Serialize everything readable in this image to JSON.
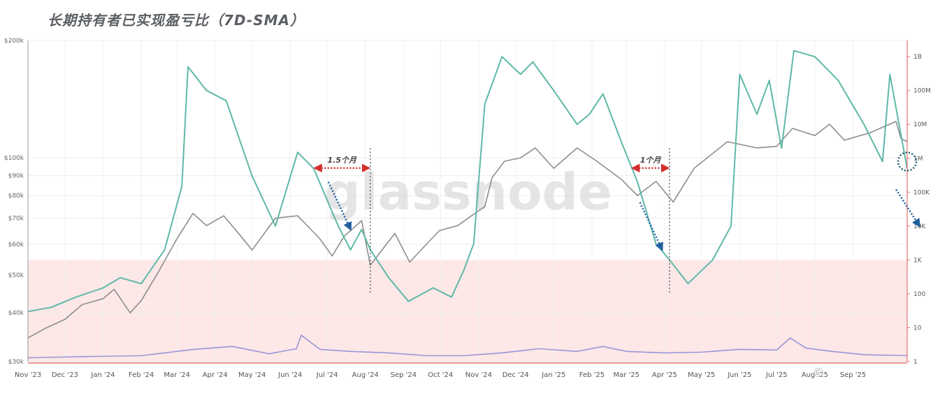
{
  "title": "长期持有者已实现盈亏比（7D-SMA）",
  "watermark": "glassnode",
  "chart_data": {
    "type": "line",
    "x_axis": {
      "type": "date",
      "range": [
        "2023-11-01",
        "2025-10-15"
      ],
      "tick_labels": [
        "Nov '23",
        "Dec '23",
        "Jan '24",
        "Feb '24",
        "Mar '24",
        "Apr '24",
        "May '24",
        "Jun '24",
        "Jul '24",
        "Aug '24",
        "Sep '24",
        "Oct '24",
        "Nov '24",
        "Dec '24",
        "Jan '25",
        "Feb '25",
        "Mar '25",
        "Apr '25",
        "May '25",
        "Jun '25",
        "Jul '25",
        "Aug '25",
        "Sep '25"
      ],
      "tick_dates": [
        "2023-11-01",
        "2023-12-01",
        "2024-01-01",
        "2024-02-01",
        "2024-03-01",
        "2024-04-01",
        "2024-05-01",
        "2024-06-01",
        "2024-07-01",
        "2024-08-01",
        "2024-09-01",
        "2024-10-01",
        "2024-11-01",
        "2024-12-01",
        "2025-01-01",
        "2025-02-01",
        "2025-03-01",
        "2025-04-01",
        "2025-05-01",
        "2025-06-01",
        "2025-07-01",
        "2025-08-01",
        "2025-09-01"
      ]
    },
    "y_left": {
      "scale": "log",
      "range": [
        30000,
        200000
      ],
      "tick_labels": [
        "$200k",
        "$100k",
        "$90k",
        "$80k",
        "$70k",
        "$60k",
        "$50k",
        "$40k",
        "$30k"
      ],
      "tick_values": [
        200000,
        100000,
        90000,
        80000,
        70000,
        60000,
        50000,
        40000,
        30000
      ],
      "color": "#7a7a7a"
    },
    "y_right": {
      "scale": "log",
      "range": [
        1,
        3000000000
      ],
      "tick_labels": [
        "1B",
        "100M",
        "10M",
        "1M",
        "100K",
        "10K",
        "1K",
        "100",
        "10",
        "1"
      ],
      "tick_values": [
        1000000000,
        100000000,
        10000000,
        1000000,
        100000,
        10000,
        1000,
        100,
        10,
        1
      ],
      "color": "#e57373"
    },
    "grid": true,
    "series": [
      {
        "axis": "left",
        "color": "#8e8e8e",
        "points": [
          [
            "2023-11-01",
            34500
          ],
          [
            "2023-11-15",
            36500
          ],
          [
            "2023-12-01",
            38500
          ],
          [
            "2023-12-15",
            42000
          ],
          [
            "2024-01-01",
            43500
          ],
          [
            "2024-01-10",
            46000
          ],
          [
            "2024-01-23",
            40000
          ],
          [
            "2024-02-01",
            43000
          ],
          [
            "2024-02-15",
            51000
          ],
          [
            "2024-03-01",
            62000
          ],
          [
            "2024-03-14",
            72000
          ],
          [
            "2024-03-25",
            67000
          ],
          [
            "2024-04-08",
            71000
          ],
          [
            "2024-04-20",
            64000
          ],
          [
            "2024-05-01",
            58000
          ],
          [
            "2024-05-20",
            70000
          ],
          [
            "2024-06-07",
            71000
          ],
          [
            "2024-06-25",
            62000
          ],
          [
            "2024-07-05",
            56000
          ],
          [
            "2024-07-15",
            63000
          ],
          [
            "2024-07-29",
            69000
          ],
          [
            "2024-08-05",
            53000
          ],
          [
            "2024-08-25",
            64000
          ],
          [
            "2024-09-06",
            54000
          ],
          [
            "2024-09-30",
            65000
          ],
          [
            "2024-10-15",
            67000
          ],
          [
            "2024-10-29",
            72000
          ],
          [
            "2024-11-06",
            75000
          ],
          [
            "2024-11-12",
            89000
          ],
          [
            "2024-11-22",
            98000
          ],
          [
            "2024-12-05",
            100000
          ],
          [
            "2024-12-17",
            106000
          ],
          [
            "2025-01-01",
            94000
          ],
          [
            "2025-01-20",
            106000
          ],
          [
            "2025-02-05",
            98000
          ],
          [
            "2025-02-25",
            88000
          ],
          [
            "2025-03-10",
            80000
          ],
          [
            "2025-03-25",
            87000
          ],
          [
            "2025-04-08",
            77000
          ],
          [
            "2025-04-25",
            94000
          ],
          [
            "2025-05-22",
            110000
          ],
          [
            "2025-06-15",
            106000
          ],
          [
            "2025-07-01",
            107000
          ],
          [
            "2025-07-14",
            119000
          ],
          [
            "2025-08-01",
            114000
          ],
          [
            "2025-08-13",
            122000
          ],
          [
            "2025-08-25",
            111000
          ],
          [
            "2025-09-15",
            116000
          ],
          [
            "2025-10-06",
            124000
          ],
          [
            "2025-10-10",
            112000
          ],
          [
            "2025-10-15",
            110000
          ]
        ]
      },
      {
        "axis": "right",
        "color": "#5fb8a8",
        "points": [
          [
            "2023-11-01",
            30
          ],
          [
            "2023-11-20",
            40
          ],
          [
            "2023-12-10",
            80
          ],
          [
            "2024-01-01",
            150
          ],
          [
            "2024-01-15",
            300
          ],
          [
            "2024-02-01",
            200
          ],
          [
            "2024-02-20",
            2000
          ],
          [
            "2024-03-05",
            150000
          ],
          [
            "2024-03-10",
            500000000
          ],
          [
            "2024-03-25",
            100000000
          ],
          [
            "2024-04-10",
            50000000
          ],
          [
            "2024-05-01",
            300000
          ],
          [
            "2024-05-20",
            10000
          ],
          [
            "2024-06-07",
            1500000
          ],
          [
            "2024-06-20",
            500000
          ],
          [
            "2024-07-10",
            10000
          ],
          [
            "2024-07-20",
            2000
          ],
          [
            "2024-07-29",
            8000
          ],
          [
            "2024-08-05",
            2000
          ],
          [
            "2024-08-20",
            300
          ],
          [
            "2024-09-05",
            60
          ],
          [
            "2024-09-25",
            150
          ],
          [
            "2024-10-10",
            80
          ],
          [
            "2024-10-20",
            500
          ],
          [
            "2024-10-28",
            3000
          ],
          [
            "2024-11-06",
            40000000
          ],
          [
            "2024-11-20",
            1000000000
          ],
          [
            "2024-12-05",
            300000000
          ],
          [
            "2024-12-15",
            700000000
          ],
          [
            "2025-01-01",
            100000000
          ],
          [
            "2025-01-20",
            10000000
          ],
          [
            "2025-01-30",
            20000000
          ],
          [
            "2025-02-10",
            80000000
          ],
          [
            "2025-02-25",
            3000000
          ],
          [
            "2025-03-10",
            200000
          ],
          [
            "2025-03-25",
            3000
          ],
          [
            "2025-04-05",
            1000
          ],
          [
            "2025-04-20",
            200
          ],
          [
            "2025-05-10",
            1000
          ],
          [
            "2025-05-25",
            10000
          ],
          [
            "2025-06-01",
            300000000
          ],
          [
            "2025-06-15",
            20000000
          ],
          [
            "2025-06-25",
            200000000
          ],
          [
            "2025-07-05",
            2000000
          ],
          [
            "2025-07-15",
            1500000000
          ],
          [
            "2025-08-01",
            1000000000
          ],
          [
            "2025-08-20",
            200000000
          ],
          [
            "2025-09-10",
            10000000
          ],
          [
            "2025-09-25",
            800000
          ],
          [
            "2025-10-01",
            300000000
          ],
          [
            "2025-10-15",
            500000
          ]
        ]
      },
      {
        "axis": "right",
        "color": "#9b96d6",
        "points": [
          [
            "2023-11-01",
            1.3
          ],
          [
            "2023-12-15",
            1.4
          ],
          [
            "2024-02-01",
            1.5
          ],
          [
            "2024-03-15",
            2.3
          ],
          [
            "2024-04-15",
            2.8
          ],
          [
            "2024-05-15",
            1.7
          ],
          [
            "2024-06-06",
            2.4
          ],
          [
            "2024-06-10",
            6
          ],
          [
            "2024-06-25",
            2.3
          ],
          [
            "2024-07-20",
            2
          ],
          [
            "2024-08-20",
            1.8
          ],
          [
            "2024-09-20",
            1.5
          ],
          [
            "2024-10-20",
            1.5
          ],
          [
            "2024-11-20",
            1.8
          ],
          [
            "2024-12-20",
            2.4
          ],
          [
            "2025-01-20",
            2
          ],
          [
            "2025-02-10",
            2.8
          ],
          [
            "2025-03-01",
            2
          ],
          [
            "2025-04-01",
            1.8
          ],
          [
            "2025-05-01",
            1.9
          ],
          [
            "2025-06-01",
            2.3
          ],
          [
            "2025-07-01",
            2.2
          ],
          [
            "2025-07-12",
            5
          ],
          [
            "2025-07-25",
            2.5
          ],
          [
            "2025-08-15",
            2
          ],
          [
            "2025-09-10",
            1.6
          ],
          [
            "2025-10-15",
            1.5
          ]
        ]
      }
    ],
    "loss_band": {
      "axis": "right",
      "from": 1,
      "to": 1000,
      "color": "#fde7e7"
    },
    "annotations": [
      {
        "type": "range-arrow",
        "label": "1.5个月",
        "from": "2024-06-20",
        "to": "2024-08-05",
        "y": 1000000
      },
      {
        "type": "range-arrow",
        "label": "1个月",
        "from": "2025-03-05",
        "to": "2025-04-05",
        "y": 1000000
      }
    ],
    "dashed_lines": [
      {
        "x": "2024-08-05",
        "y_from": 100,
        "y_to": 2000000
      },
      {
        "x": "2025-04-05",
        "y_from": 100,
        "y_to": 2000000
      }
    ],
    "trend_arrows": [
      {
        "from": [
          "2024-07-02",
          200000
        ],
        "to": [
          "2024-07-20",
          8000
        ]
      },
      {
        "from": [
          "2025-03-12",
          50000
        ],
        "to": [
          "2025-03-30",
          2000
        ]
      },
      {
        "from": [
          "2025-10-06",
          120000
        ],
        "to": [
          "2025-10-25",
          10000
        ]
      }
    ],
    "highlight_circle": {
      "x": "2025-10-15",
      "y": 800000
    }
  },
  "copyright_mark": "©"
}
